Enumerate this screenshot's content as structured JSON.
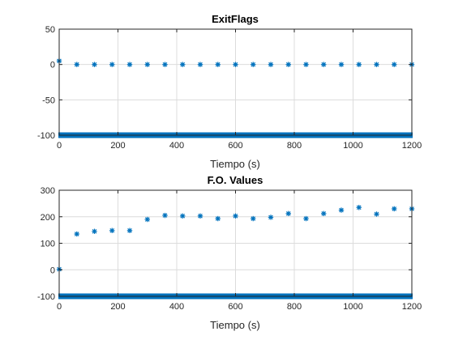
{
  "colors": {
    "marker": "#0072bd",
    "grid": "#dcdcdc",
    "axis": "#262626"
  },
  "chart_data": [
    {
      "type": "scatter",
      "title": "ExitFlags",
      "xlabel": "Tiempo (s)",
      "ylabel": "",
      "xlim": [
        0,
        1200
      ],
      "ylim": [
        -100,
        50
      ],
      "xticks": [
        0,
        200,
        400,
        600,
        800,
        1000,
        1200
      ],
      "yticks": [
        -100,
        -50,
        0,
        50
      ],
      "grid": true,
      "marker": "asterisk",
      "points": [
        [
          0,
          5
        ],
        [
          60,
          0
        ],
        [
          120,
          0
        ],
        [
          180,
          0
        ],
        [
          240,
          0
        ],
        [
          300,
          0
        ],
        [
          360,
          0
        ],
        [
          420,
          0
        ],
        [
          480,
          0
        ],
        [
          540,
          0
        ],
        [
          600,
          0
        ],
        [
          660,
          0
        ],
        [
          720,
          0
        ],
        [
          780,
          0
        ],
        [
          840,
          0
        ],
        [
          900,
          0
        ],
        [
          960,
          0
        ],
        [
          1020,
          0
        ],
        [
          1080,
          0
        ],
        [
          1140,
          0
        ],
        [
          1200,
          0
        ]
      ],
      "dense_series": {
        "y": -100,
        "x_start": 0,
        "x_end": 1200,
        "step": 1
      }
    },
    {
      "type": "scatter",
      "title": "F.O. Values",
      "xlabel": "Tiempo (s)",
      "ylabel": "",
      "xlim": [
        0,
        1200
      ],
      "ylim": [
        -100,
        300
      ],
      "xticks": [
        0,
        200,
        400,
        600,
        800,
        1000,
        1200
      ],
      "yticks": [
        -100,
        0,
        100,
        200,
        300
      ],
      "grid": true,
      "marker": "asterisk",
      "points": [
        [
          0,
          2
        ],
        [
          60,
          135
        ],
        [
          120,
          145
        ],
        [
          180,
          148
        ],
        [
          240,
          148
        ],
        [
          300,
          190
        ],
        [
          360,
          205
        ],
        [
          420,
          203
        ],
        [
          480,
          203
        ],
        [
          540,
          193
        ],
        [
          600,
          203
        ],
        [
          660,
          193
        ],
        [
          720,
          198
        ],
        [
          780,
          212
        ],
        [
          840,
          193
        ],
        [
          900,
          212
        ],
        [
          960,
          225
        ],
        [
          1020,
          235
        ],
        [
          1080,
          210
        ],
        [
          1140,
          230
        ],
        [
          1200,
          230
        ]
      ],
      "dense_series": {
        "y": -100,
        "x_start": 0,
        "x_end": 1200,
        "step": 1
      }
    }
  ]
}
